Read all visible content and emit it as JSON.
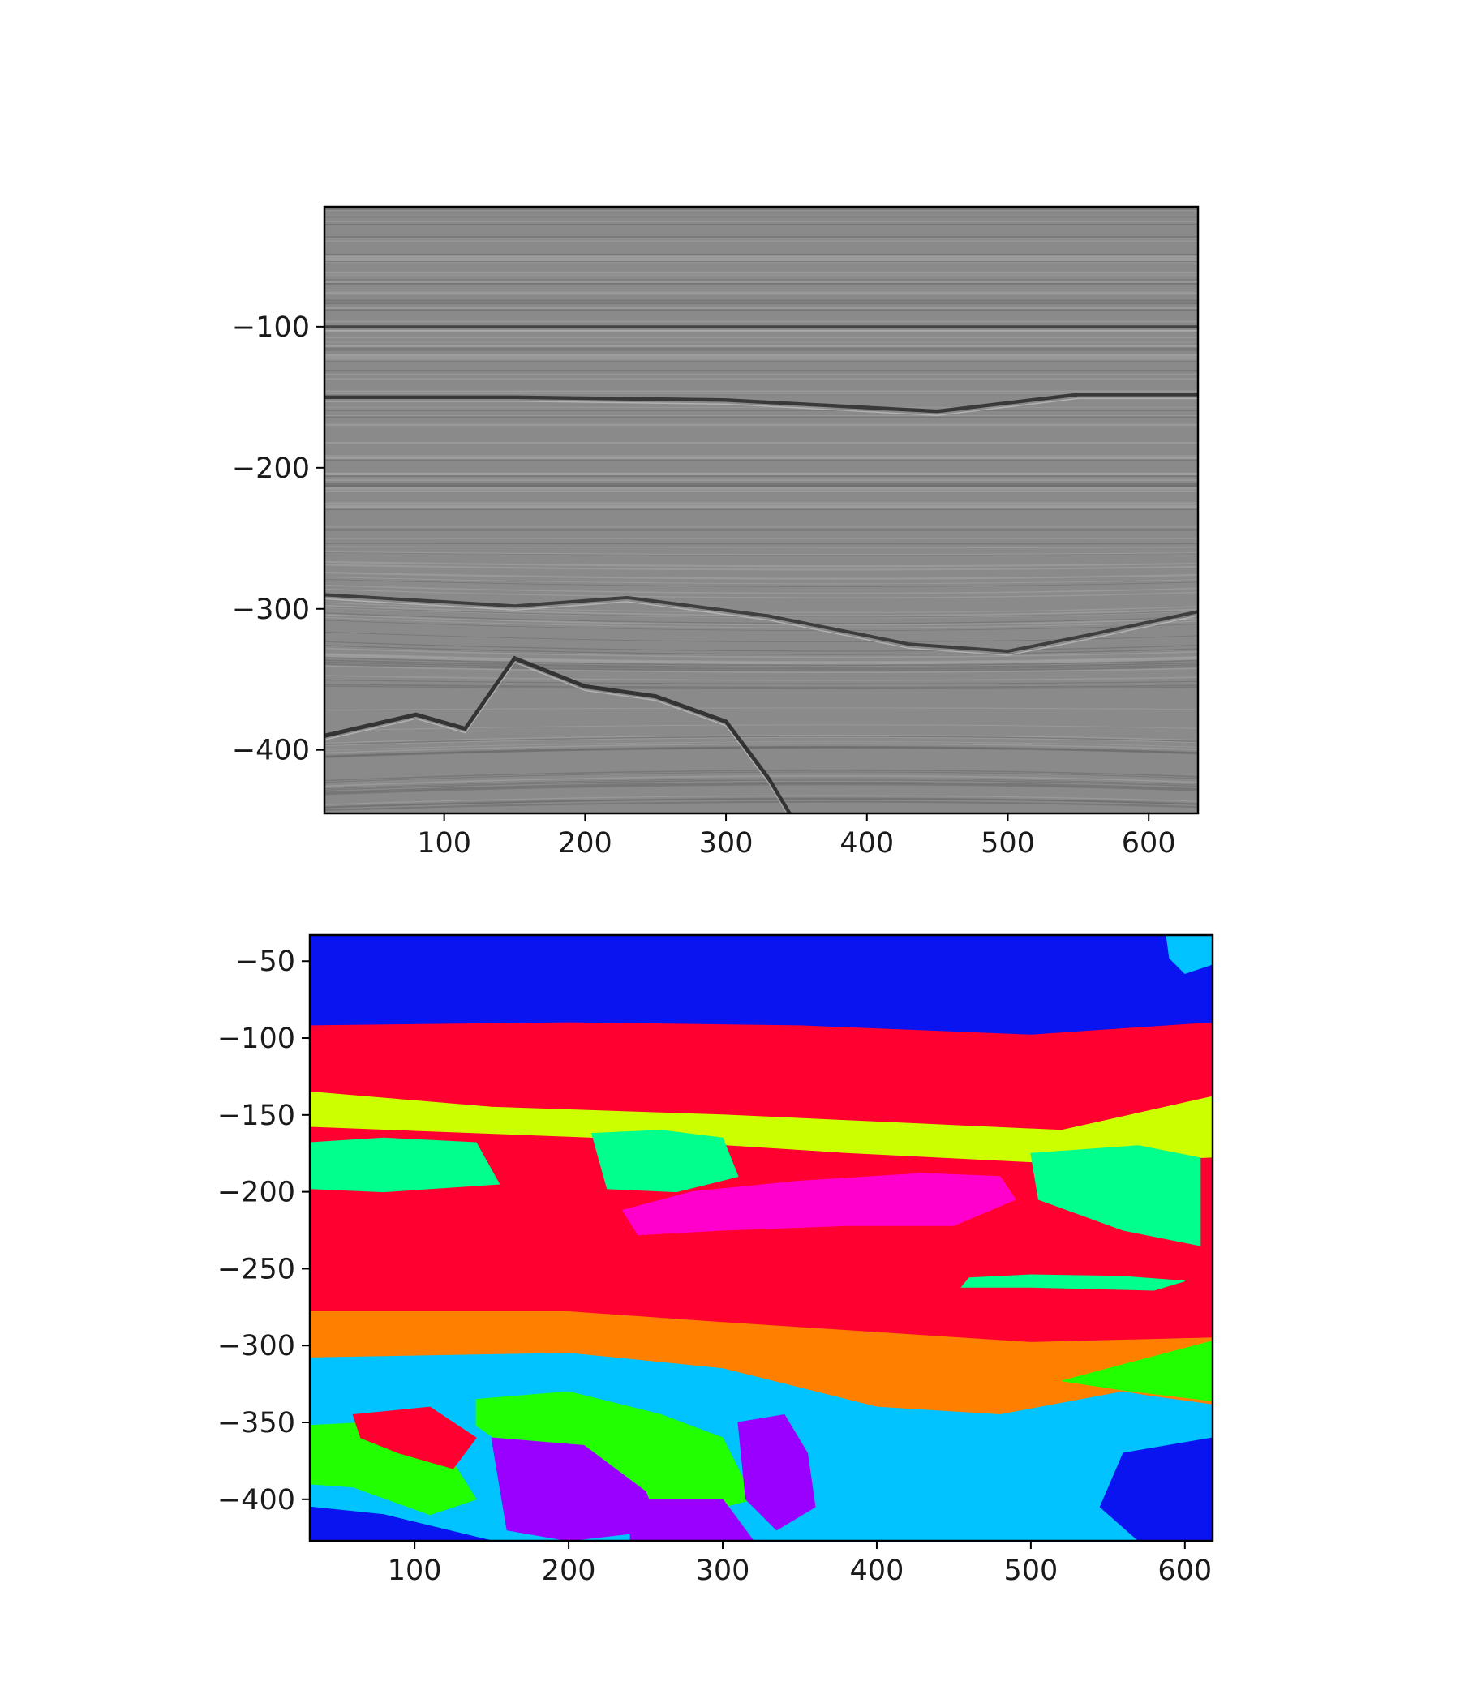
{
  "chart_data": [
    {
      "type": "heatmap",
      "title": "",
      "xlabel": "",
      "ylabel": "",
      "colormap": "grayscale",
      "xlim": [
        15,
        635
      ],
      "ylim": [
        -445,
        -15
      ],
      "xticks": [
        100,
        200,
        300,
        400,
        500,
        600
      ],
      "yticks": [
        -100,
        -200,
        -300,
        -400
      ],
      "grid": false,
      "horizons": [
        {
          "name": "",
          "points": [
            [
              15,
              -150
            ],
            [
              150,
              -150
            ],
            [
              300,
              -152
            ],
            [
              450,
              -160
            ],
            [
              550,
              -148
            ],
            [
              635,
              -148
            ]
          ],
          "strength": 0.6
        },
        {
          "name": "",
          "points": [
            [
              15,
              -100
            ],
            [
              635,
              -100
            ]
          ],
          "strength": 0.35
        },
        {
          "name": "",
          "points": [
            [
              15,
              -290
            ],
            [
              150,
              -298
            ],
            [
              230,
              -292
            ],
            [
              330,
              -305
            ],
            [
              430,
              -325
            ],
            [
              500,
              -330
            ],
            [
              560,
              -318
            ],
            [
              635,
              -302
            ]
          ],
          "strength": 0.5
        },
        {
          "name": "",
          "points": [
            [
              15,
              -390
            ],
            [
              80,
              -375
            ],
            [
              115,
              -385
            ],
            [
              150,
              -335
            ],
            [
              200,
              -355
            ],
            [
              250,
              -362
            ],
            [
              300,
              -380
            ],
            [
              330,
              -420
            ],
            [
              345,
              -445
            ]
          ],
          "strength": 0.75
        }
      ]
    },
    {
      "type": "heatmap",
      "title": "",
      "xlabel": "",
      "ylabel": "",
      "colormap": "categorical",
      "xlim": [
        32,
        618
      ],
      "ylim": [
        -427,
        -33
      ],
      "xticks": [
        100,
        200,
        300,
        400,
        500,
        600
      ],
      "yticks": [
        -50,
        -100,
        -150,
        -200,
        -250,
        -300,
        -350,
        -400
      ],
      "grid": false,
      "classes": [
        {
          "name": "",
          "color": "#0a14f0"
        },
        {
          "name": "",
          "color": "#ff0030"
        },
        {
          "name": "",
          "color": "#ccff00"
        },
        {
          "name": "",
          "color": "#00ff8c"
        },
        {
          "name": "",
          "color": "#ff00cc"
        },
        {
          "name": "",
          "color": "#ff8000"
        },
        {
          "name": "",
          "color": "#00c3ff"
        },
        {
          "name": "",
          "color": "#22ff00"
        },
        {
          "name": "",
          "color": "#9a00ff"
        }
      ],
      "regions": [
        {
          "class": 0,
          "points": [
            [
              32,
              -33
            ],
            [
              618,
              -33
            ],
            [
              618,
              -90
            ],
            [
              500,
              -98
            ],
            [
              350,
              -92
            ],
            [
              200,
              -90
            ],
            [
              32,
              -92
            ]
          ]
        },
        {
          "class": 1,
          "points": [
            [
              32,
              -92
            ],
            [
              200,
              -90
            ],
            [
              350,
              -92
            ],
            [
              500,
              -98
            ],
            [
              618,
              -90
            ],
            [
              618,
              -138
            ],
            [
              520,
              -160
            ],
            [
              300,
              -150
            ],
            [
              150,
              -145
            ],
            [
              32,
              -135
            ]
          ]
        },
        {
          "class": 2,
          "points": [
            [
              32,
              -135
            ],
            [
              150,
              -145
            ],
            [
              300,
              -150
            ],
            [
              520,
              -160
            ],
            [
              618,
              -138
            ],
            [
              618,
              -178
            ],
            [
              520,
              -182
            ],
            [
              380,
              -175
            ],
            [
              240,
              -166
            ],
            [
              32,
              -158
            ]
          ]
        },
        {
          "class": 1,
          "points": [
            [
              32,
              -158
            ],
            [
              240,
              -166
            ],
            [
              380,
              -175
            ],
            [
              520,
              -182
            ],
            [
              618,
              -178
            ],
            [
              618,
              -295
            ],
            [
              500,
              -298
            ],
            [
              300,
              -285
            ],
            [
              200,
              -278
            ],
            [
              32,
              -278
            ]
          ]
        },
        {
          "class": 3,
          "points": [
            [
              32,
              -168
            ],
            [
              80,
              -165
            ],
            [
              140,
              -168
            ],
            [
              155,
              -195
            ],
            [
              80,
              -200
            ],
            [
              32,
              -198
            ]
          ]
        },
        {
          "class": 3,
          "points": [
            [
              215,
              -162
            ],
            [
              260,
              -160
            ],
            [
              300,
              -165
            ],
            [
              310,
              -190
            ],
            [
              270,
              -200
            ],
            [
              225,
              -198
            ]
          ]
        },
        {
          "class": 3,
          "points": [
            [
              500,
              -175
            ],
            [
              570,
              -170
            ],
            [
              610,
              -178
            ],
            [
              610,
              -235
            ],
            [
              560,
              -225
            ],
            [
              505,
              -205
            ]
          ]
        },
        {
          "class": 4,
          "points": [
            [
              235,
              -212
            ],
            [
              280,
              -200
            ],
            [
              350,
              -193
            ],
            [
              430,
              -188
            ],
            [
              480,
              -190
            ],
            [
              490,
              -205
            ],
            [
              450,
              -222
            ],
            [
              380,
              -222
            ],
            [
              300,
              -225
            ],
            [
              245,
              -228
            ]
          ]
        },
        {
          "class": 3,
          "points": [
            [
              460,
              -256
            ],
            [
              500,
              -254
            ],
            [
              560,
              -255
            ],
            [
              600,
              -258
            ],
            [
              580,
              -264
            ],
            [
              500,
              -262
            ],
            [
              455,
              -262
            ]
          ]
        },
        {
          "class": 5,
          "points": [
            [
              32,
              -278
            ],
            [
              200,
              -278
            ],
            [
              300,
              -285
            ],
            [
              500,
              -298
            ],
            [
              618,
              -295
            ],
            [
              618,
              -338
            ],
            [
              560,
              -330
            ],
            [
              480,
              -345
            ],
            [
              400,
              -340
            ],
            [
              300,
              -315
            ],
            [
              200,
              -305
            ],
            [
              32,
              -308
            ]
          ]
        },
        {
          "class": 7,
          "points": [
            [
              520,
              -323
            ],
            [
              618,
              -297
            ],
            [
              618,
              -336
            ],
            [
              560,
              -329
            ]
          ]
        },
        {
          "class": 6,
          "points": [
            [
              32,
              -308
            ],
            [
              200,
              -305
            ],
            [
              300,
              -315
            ],
            [
              400,
              -340
            ],
            [
              480,
              -345
            ],
            [
              560,
              -330
            ],
            [
              618,
              -340
            ],
            [
              618,
              -427
            ],
            [
              550,
              -427
            ],
            [
              480,
              -420
            ],
            [
              400,
              -427
            ],
            [
              32,
              -427
            ]
          ]
        },
        {
          "class": 7,
          "points": [
            [
              140,
              -335
            ],
            [
              200,
              -330
            ],
            [
              260,
              -345
            ],
            [
              300,
              -360
            ],
            [
              320,
              -400
            ],
            [
              280,
              -410
            ],
            [
              230,
              -400
            ],
            [
              180,
              -380
            ],
            [
              140,
              -352
            ]
          ]
        },
        {
          "class": 7,
          "points": [
            [
              32,
              -352
            ],
            [
              70,
              -350
            ],
            [
              120,
              -368
            ],
            [
              140,
              -400
            ],
            [
              110,
              -410
            ],
            [
              60,
              -392
            ],
            [
              32,
              -390
            ]
          ]
        },
        {
          "class": 8,
          "points": [
            [
              150,
              -360
            ],
            [
              210,
              -365
            ],
            [
              250,
              -395
            ],
            [
              260,
              -420
            ],
            [
              200,
              -427
            ],
            [
              160,
              -420
            ]
          ]
        },
        {
          "class": 8,
          "points": [
            [
              310,
              -350
            ],
            [
              340,
              -345
            ],
            [
              355,
              -370
            ],
            [
              360,
              -405
            ],
            [
              335,
              -420
            ],
            [
              315,
              -400
            ]
          ]
        },
        {
          "class": 8,
          "points": [
            [
              240,
              -400
            ],
            [
              300,
              -400
            ],
            [
              320,
              -427
            ],
            [
              240,
              -427
            ]
          ]
        },
        {
          "class": 1,
          "points": [
            [
              60,
              -345
            ],
            [
              110,
              -340
            ],
            [
              140,
              -360
            ],
            [
              125,
              -380
            ],
            [
              90,
              -370
            ],
            [
              65,
              -360
            ]
          ]
        },
        {
          "class": 0,
          "points": [
            [
              560,
              -370
            ],
            [
              618,
              -360
            ],
            [
              618,
              -427
            ],
            [
              570,
              -427
            ],
            [
              545,
              -405
            ]
          ]
        },
        {
          "class": 0,
          "points": [
            [
              32,
              -405
            ],
            [
              80,
              -410
            ],
            [
              150,
              -427
            ],
            [
              32,
              -427
            ]
          ]
        },
        {
          "class": 0,
          "points": [
            [
              580,
              -33
            ],
            [
              618,
              -33
            ],
            [
              618,
              -60
            ],
            [
              590,
              -55
            ]
          ]
        },
        {
          "class": 6,
          "points": [
            [
              588,
              -33
            ],
            [
              618,
              -33
            ],
            [
              618,
              -52
            ],
            [
              600,
              -58
            ],
            [
              590,
              -48
            ]
          ]
        }
      ]
    }
  ]
}
